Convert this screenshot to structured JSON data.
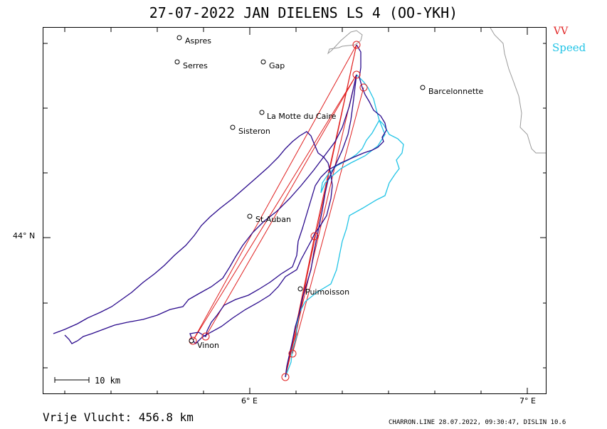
{
  "title": "27-07-2022   JAN DIELENS   LS 4 (OO-YKH)",
  "legend": {
    "vv_label": "VV",
    "speed_label": "Speed",
    "vv_color": "#e02020",
    "speed_color": "#22c4e6",
    "track_color": "#2a0a8c"
  },
  "axes": {
    "y_label": "44° N",
    "x_labels": [
      "6° E",
      "7° E"
    ]
  },
  "towns": [
    {
      "name": "Aspres"
    },
    {
      "name": "Serres"
    },
    {
      "name": "Gap"
    },
    {
      "name": "Barcelonnette"
    },
    {
      "name": "La Motte du Caire"
    },
    {
      "name": "Sisteron"
    },
    {
      "name": "St.Auban"
    },
    {
      "name": "Puimoisson"
    },
    {
      "name": "Vinon"
    }
  ],
  "scale_label": "10 km",
  "footer": {
    "distance": "Vrije Vlucht:  456.8 km",
    "software": "CHARRON.LINE 28.07.2022, 09:30:47, DISLIN 10.6"
  }
}
